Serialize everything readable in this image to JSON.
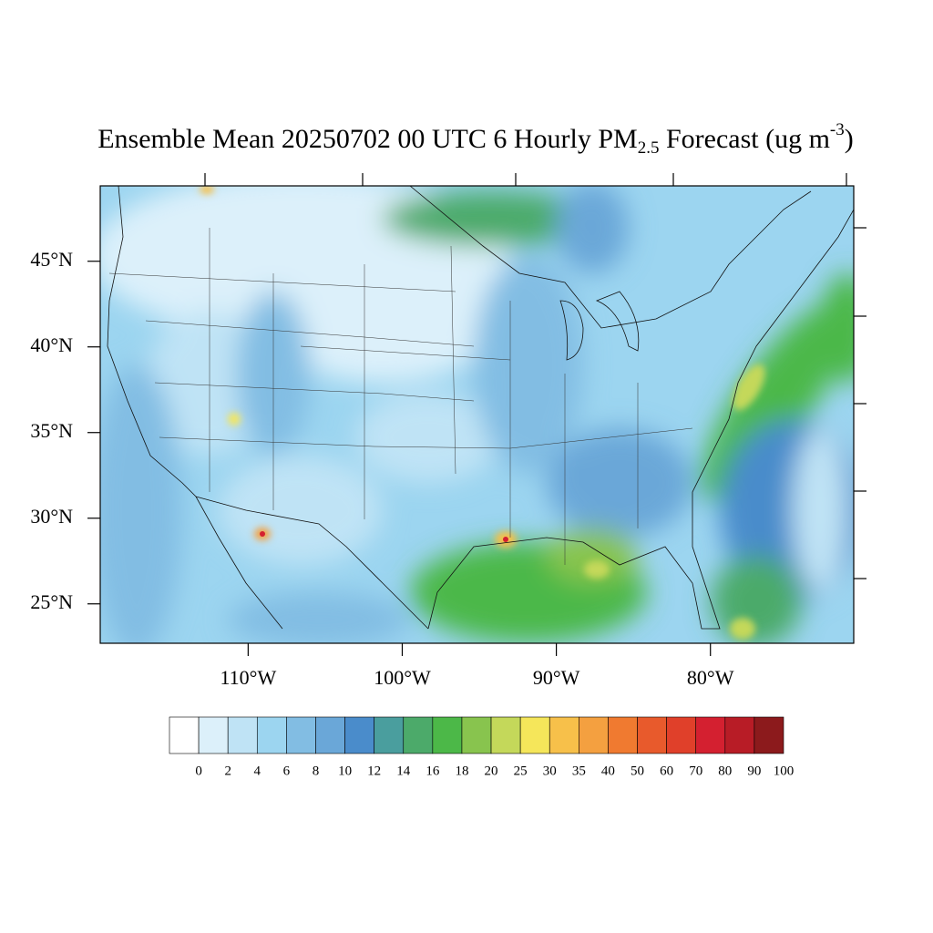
{
  "map": {
    "type": "filled-contour-map",
    "title": {
      "text": "Ensemble Mean 20250702 00 UTC 6 Hourly PM",
      "subscript": "2.5",
      "text2": " Forecast (ug m",
      "superscript": "-3",
      "text3": ")"
    },
    "ylim": [
      22.7,
      49.4
    ],
    "xlim": [
      -119.6,
      -70.7
    ],
    "yticks": [
      {
        "value": 45,
        "label": "45°N"
      },
      {
        "value": 40,
        "label": "40°N"
      },
      {
        "value": 35,
        "label": "35°N"
      },
      {
        "value": 30,
        "label": "30°N"
      },
      {
        "value": 25,
        "label": "25°N"
      }
    ],
    "xticks": [
      {
        "value": -110,
        "label": "110°W"
      },
      {
        "value": -100,
        "label": "100°W"
      },
      {
        "value": -90,
        "label": "90°W"
      },
      {
        "value": -80,
        "label": "80°W"
      }
    ],
    "colorbar": {
      "levels": [
        0,
        2,
        4,
        6,
        8,
        10,
        12,
        14,
        16,
        18,
        20,
        25,
        30,
        35,
        40,
        50,
        60,
        70,
        80,
        90,
        100
      ],
      "colors": [
        "#ffffff",
        "#dcf0fa",
        "#bfe3f5",
        "#9cd5f0",
        "#82bde3",
        "#6aa7d8",
        "#4a8ccb",
        "#4a9e9e",
        "#4caa6a",
        "#4cb848",
        "#88c44e",
        "#c4d85a",
        "#f5e65a",
        "#f7c04a",
        "#f4a040",
        "#f07a30",
        "#e85a2c",
        "#e0402a",
        "#d42030",
        "#b81c26",
        "#8c1a1c"
      ]
    }
  }
}
